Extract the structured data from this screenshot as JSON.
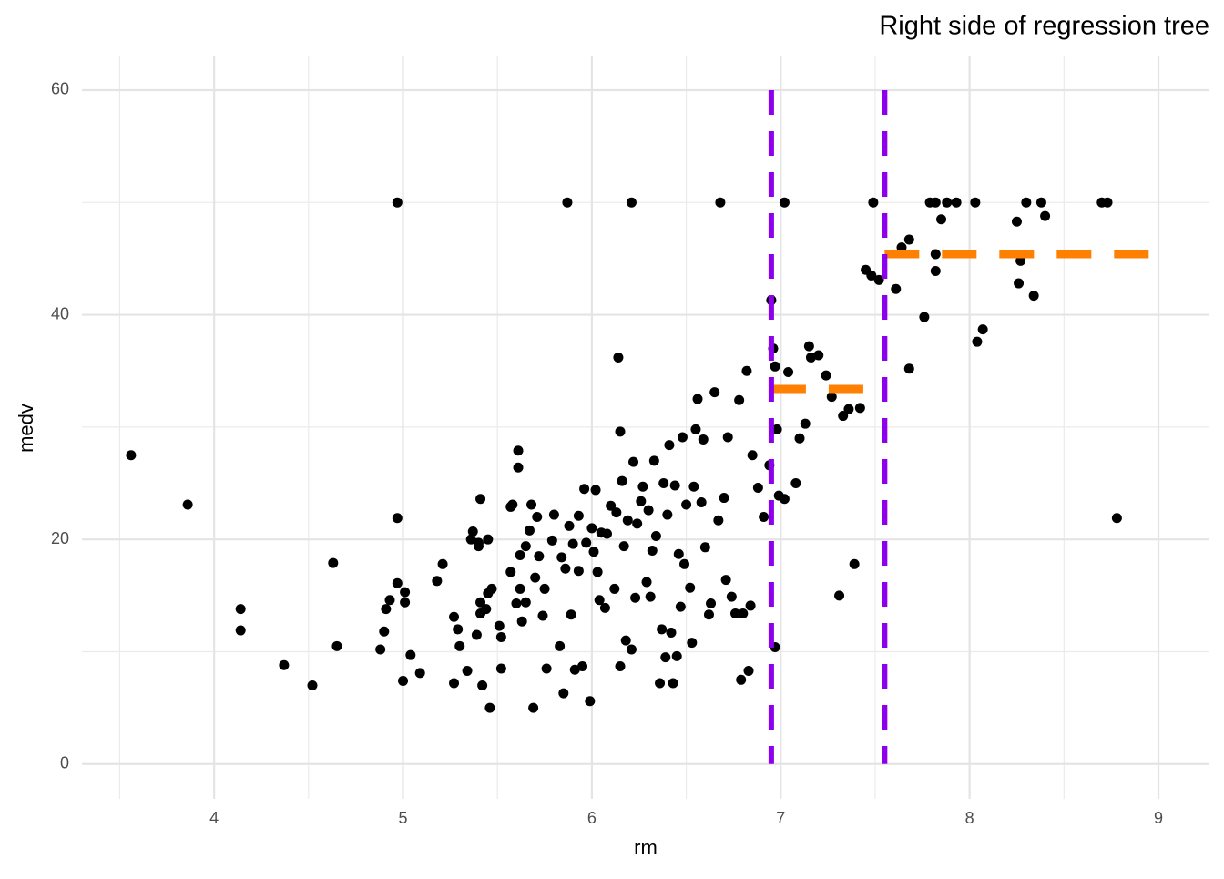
{
  "chart_data": {
    "type": "scatter",
    "title": "Right side of regression tree",
    "x_label": "rm",
    "y_label": "medv",
    "xlim": [
      3.3,
      9.27
    ],
    "ylim": [
      -3.1,
      63
    ],
    "xticks": [
      4,
      5,
      6,
      7,
      8,
      9
    ],
    "yticks": [
      0,
      20,
      40,
      60
    ],
    "x_minor_ticks": [
      3.5,
      4.5,
      5.5,
      6.5,
      7.5,
      8.5
    ],
    "y_minor_ticks": [
      10,
      30,
      50
    ],
    "grid": true,
    "series": [
      {
        "color": "#000000",
        "x": [
          3.56,
          3.86,
          4.14,
          4.14,
          4.37,
          4.52,
          4.63,
          4.65,
          4.88,
          4.9,
          4.91,
          4.93,
          4.97,
          4.97,
          4.97,
          5.0,
          5.01,
          5.01,
          5.04,
          5.09,
          5.18,
          5.21,
          5.27,
          5.27,
          5.29,
          5.3,
          5.34,
          5.36,
          5.37,
          5.39,
          5.4,
          5.4,
          5.41,
          5.41,
          5.41,
          5.42,
          5.44,
          5.45,
          5.45,
          5.46,
          5.47,
          5.51,
          5.52,
          5.52,
          5.57,
          5.57,
          5.58,
          5.6,
          5.61,
          5.61,
          5.62,
          5.62,
          5.63,
          5.65,
          5.65,
          5.67,
          5.68,
          5.69,
          5.7,
          5.71,
          5.72,
          5.74,
          5.75,
          5.76,
          5.79,
          5.8,
          5.83,
          5.84,
          5.85,
          5.86,
          5.87,
          5.88,
          5.89,
          5.9,
          5.91,
          5.93,
          5.93,
          5.95,
          5.96,
          5.97,
          5.99,
          6.0,
          6.01,
          6.02,
          6.03,
          6.04,
          6.05,
          6.07,
          6.08,
          6.1,
          6.12,
          6.13,
          6.14,
          6.15,
          6.15,
          6.16,
          6.17,
          6.18,
          6.19,
          6.21,
          6.21,
          6.22,
          6.23,
          6.24,
          6.26,
          6.27,
          6.29,
          6.3,
          6.31,
          6.32,
          6.33,
          6.34,
          6.36,
          6.37,
          6.38,
          6.39,
          6.4,
          6.41,
          6.42,
          6.43,
          6.44,
          6.45,
          6.46,
          6.47,
          6.48,
          6.49,
          6.5,
          6.52,
          6.53,
          6.54,
          6.55,
          6.56,
          6.58,
          6.59,
          6.6,
          6.62,
          6.63,
          6.65,
          6.67,
          6.68,
          6.7,
          6.71,
          6.72,
          6.74,
          6.76,
          6.78,
          6.79,
          6.8,
          6.82,
          6.83,
          6.84,
          6.85,
          6.88,
          6.91,
          6.94,
          6.95,
          6.96,
          6.97,
          6.97,
          6.98,
          6.99,
          7.02,
          7.02,
          7.04,
          7.08,
          7.1,
          7.13,
          7.15,
          7.16,
          7.2,
          7.24,
          7.27,
          7.31,
          7.33,
          7.36,
          7.39,
          7.42,
          7.45,
          7.48,
          7.49,
          7.52,
          7.61,
          7.64,
          7.68,
          7.68,
          7.76,
          7.79,
          7.82,
          7.82,
          7.82,
          7.85,
          7.88,
          7.93,
          8.03,
          8.04,
          8.07,
          8.25,
          8.26,
          8.27,
          8.3,
          8.34,
          8.38,
          8.4,
          8.7,
          8.73,
          8.78
        ],
        "y": [
          27.5,
          23.1,
          13.8,
          11.9,
          8.8,
          7.0,
          17.9,
          10.5,
          10.2,
          11.8,
          13.8,
          14.6,
          50,
          21.9,
          16.1,
          7.4,
          15.3,
          14.4,
          9.7,
          8.1,
          16.3,
          17.8,
          13.1,
          7.2,
          12.0,
          10.5,
          8.3,
          20.0,
          20.7,
          11.5,
          19.7,
          19.4,
          14.4,
          13.4,
          23.6,
          7.0,
          13.8,
          20.0,
          15.2,
          5.0,
          15.6,
          12.3,
          8.5,
          11.3,
          17.1,
          22.9,
          23.1,
          14.3,
          27.9,
          26.4,
          18.6,
          15.6,
          12.7,
          19.4,
          14.4,
          20.8,
          23.1,
          5.0,
          16.6,
          22.0,
          18.5,
          13.2,
          15.6,
          8.5,
          19.9,
          22.2,
          10.5,
          18.4,
          6.3,
          17.4,
          50,
          21.2,
          13.3,
          19.6,
          8.4,
          22.1,
          17.2,
          8.7,
          24.5,
          19.7,
          5.6,
          21.0,
          18.9,
          24.4,
          17.1,
          14.6,
          20.6,
          13.9,
          20.5,
          23.0,
          15.6,
          22.4,
          36.2,
          29.6,
          8.7,
          25.2,
          19.4,
          11.0,
          21.7,
          50,
          10.2,
          26.9,
          14.8,
          21.4,
          23.4,
          24.7,
          16.2,
          22.6,
          14.9,
          19.0,
          27.0,
          20.3,
          7.2,
          12.0,
          25.0,
          9.5,
          22.2,
          28.4,
          11.7,
          7.2,
          24.8,
          9.6,
          18.7,
          14.0,
          29.1,
          17.8,
          23.1,
          15.7,
          10.8,
          24.7,
          29.8,
          32.5,
          23.3,
          28.9,
          19.3,
          13.3,
          14.3,
          33.1,
          21.7,
          50,
          23.7,
          16.4,
          29.1,
          14.9,
          13.4,
          32.4,
          7.5,
          13.4,
          35.0,
          8.3,
          14.1,
          27.5,
          24.6,
          22.0,
          26.6,
          41.3,
          37.0,
          35.4,
          10.4,
          29.8,
          23.9,
          50,
          23.6,
          34.9,
          25.0,
          29.0,
          30.3,
          37.2,
          36.2,
          36.4,
          34.6,
          32.7,
          15.0,
          31.0,
          31.6,
          17.8,
          31.7,
          44.0,
          43.5,
          50,
          43.1,
          42.3,
          46.0,
          46.7,
          35.2,
          39.8,
          50,
          50,
          45.4,
          43.9,
          48.5,
          50,
          50,
          50,
          37.6,
          38.7,
          48.3,
          42.8,
          44.8,
          50,
          41.7,
          50,
          48.8,
          50,
          50,
          21.9
        ]
      }
    ],
    "split_lines": {
      "color": "#8c00ee",
      "values": [
        6.95,
        7.55
      ]
    },
    "segments": {
      "color": "#ff7f00",
      "items": [
        {
          "x0": 6.95,
          "x1": 7.55,
          "y": 33.4
        },
        {
          "x0": 7.55,
          "x1": 9.0,
          "y": 45.4
        }
      ]
    }
  }
}
